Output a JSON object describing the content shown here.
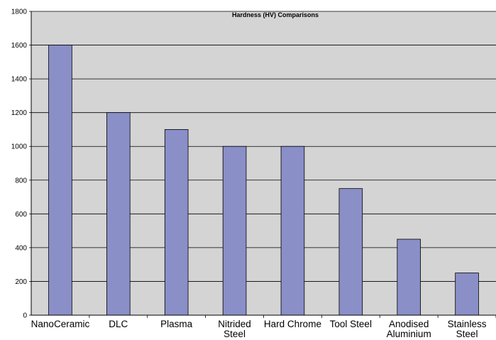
{
  "chart_data": {
    "type": "bar",
    "title": "Hardness (HV) Comparisons",
    "xlabel": "",
    "ylabel": "",
    "ylim": [
      0,
      1800
    ],
    "yticks": [
      0,
      200,
      400,
      600,
      800,
      1000,
      1200,
      1400,
      1600,
      1800
    ],
    "grid": true,
    "legend": "none",
    "categories": [
      [
        "NanoCeramic"
      ],
      [
        "DLC"
      ],
      [
        "Plasma"
      ],
      [
        "Nitrided",
        "Steel"
      ],
      [
        "Hard Chrome"
      ],
      [
        "Tool Steel"
      ],
      [
        "Anodised",
        "Aluminium"
      ],
      [
        "Stainless",
        "Steel"
      ]
    ],
    "values": [
      1600,
      1200,
      1100,
      1000,
      1000,
      750,
      450,
      250
    ],
    "colors": {
      "bar": "#8a8fc8",
      "bar_stroke": "#000000",
      "plot_background": "#d4d4d4",
      "gridline": "#000000"
    }
  }
}
